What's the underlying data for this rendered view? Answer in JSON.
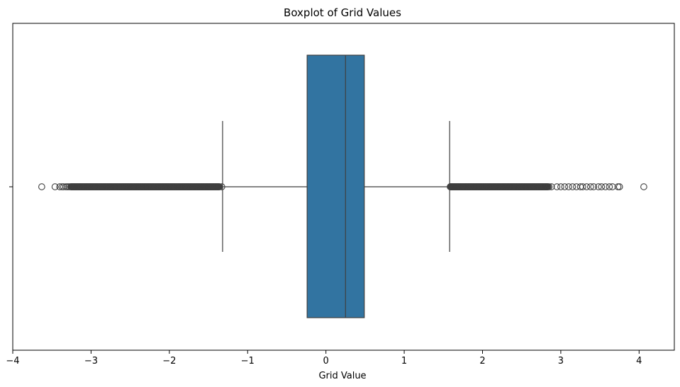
{
  "chart_data": {
    "type": "boxplot",
    "title": "Boxplot of Grid Values",
    "xlabel": "Grid Value",
    "ylabel": "",
    "xlim": [
      -4.0,
      4.45
    ],
    "xticks": [
      -4,
      -3,
      -2,
      -1,
      0,
      1,
      2,
      3,
      4
    ],
    "xtick_labels": [
      "−4",
      "−3",
      "−2",
      "−1",
      "0",
      "1",
      "2",
      "3",
      "4"
    ],
    "grid": false,
    "box": {
      "q1": -0.24,
      "median": 0.25,
      "q3": 0.49,
      "whisker_low": -1.32,
      "whisker_high": 1.58,
      "fill_color": "#3274a1",
      "line_color": "#3f3f3f"
    },
    "outliers_low": [
      -3.63,
      -3.46,
      -3.4,
      -3.37,
      -3.35,
      -3.32,
      -3.3,
      -3.28,
      -3.26,
      -3.24,
      -3.22,
      -3.2,
      -3.15,
      -3.1,
      -3.05,
      -3.0,
      -2.95,
      -2.9,
      -2.85,
      -2.8,
      -2.75,
      -2.7,
      -2.65,
      -2.6,
      -2.55,
      -2.5,
      -2.45,
      -2.4,
      -2.35,
      -2.3,
      -2.25,
      -2.2,
      -2.15,
      -2.1,
      -2.05,
      -2.0,
      -1.95,
      -1.9,
      -1.85,
      -1.8,
      -1.75,
      -1.7,
      -1.65,
      -1.6,
      -1.55,
      -1.5,
      -1.45,
      -1.4,
      -1.36,
      -1.33
    ],
    "outliers_high": [
      1.6,
      1.63,
      1.66,
      1.7,
      1.75,
      1.8,
      1.85,
      1.9,
      1.95,
      2.0,
      2.05,
      2.1,
      2.15,
      2.2,
      2.25,
      2.3,
      2.35,
      2.4,
      2.45,
      2.5,
      2.55,
      2.6,
      2.65,
      2.7,
      2.75,
      2.8,
      2.85,
      2.88,
      2.95,
      3.0,
      3.05,
      3.1,
      3.15,
      3.2,
      3.25,
      3.28,
      3.33,
      3.38,
      3.42,
      3.48,
      3.52,
      3.57,
      3.62,
      3.66,
      3.73,
      3.75,
      4.06
    ]
  }
}
